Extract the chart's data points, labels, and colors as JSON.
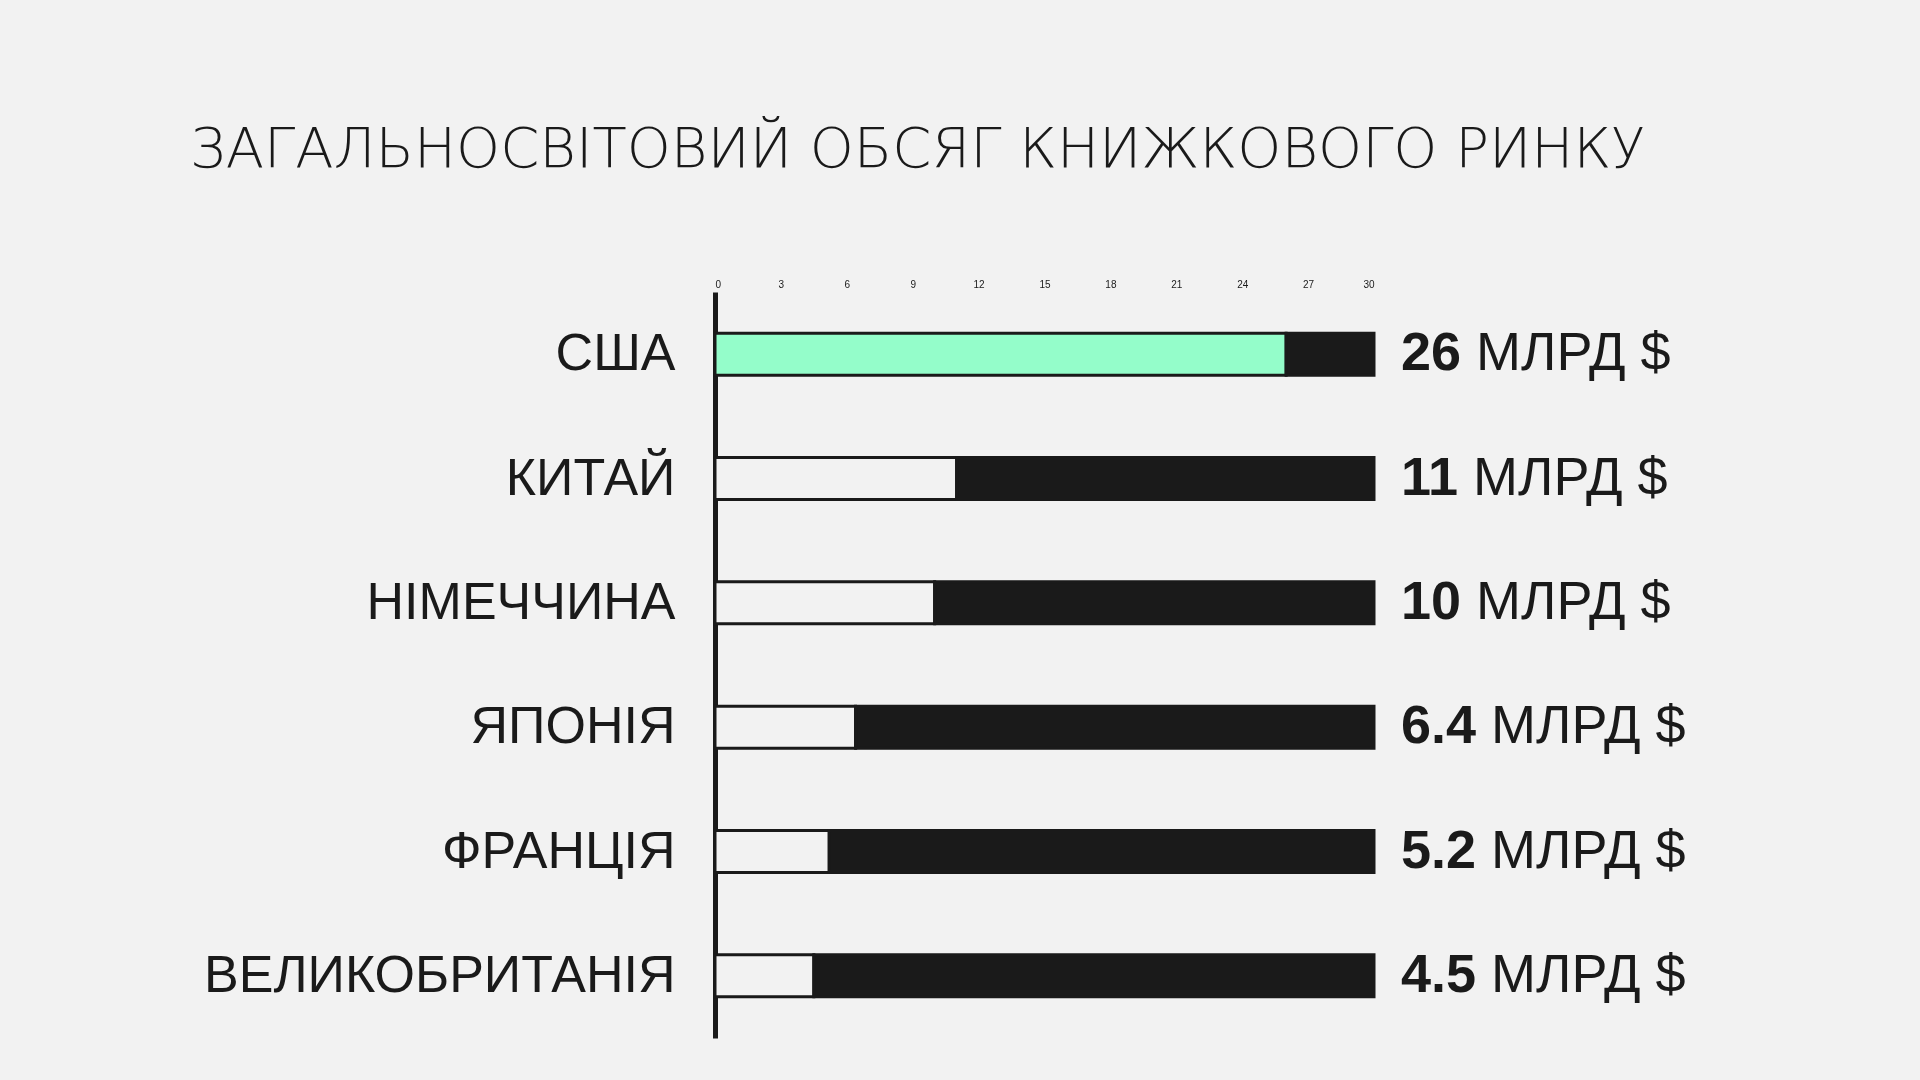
{
  "chart_data": {
    "type": "bar",
    "orientation": "horizontal",
    "stacked": true,
    "title": "ЗАГАЛЬНОСВІТОВИЙ ОБСЯГ КНИЖКОВОГО РИНКУ",
    "categories": [
      "США",
      "КИТАЙ",
      "НІМЕЧЧИНА",
      "ЯПОНІЯ",
      "ФРАНЦІЯ",
      "ВЕЛИКОБРИТАНІЯ"
    ],
    "series": [
      {
        "colors": [
          "#94fdca",
          "#f2f2f2",
          "#f2f2f2",
          "#f2f2f2",
          "#f2f2f2",
          "#f2f2f2"
        ],
        "values": [
          26,
          11,
          10,
          6.4,
          5.2,
          4.5
        ],
        "value_labels": [
          "26 МЛРД $",
          "11 МЛРД $",
          "10 МЛРД $",
          "6.4 МЛРД $",
          "5.2 МЛРД $",
          "4.5 МЛРД $"
        ]
      },
      {
        "color": "#1a1a1a",
        "values": [
          4,
          19,
          20,
          23.6,
          24.8,
          25.5
        ]
      }
    ],
    "xlim": [
      0,
      30
    ],
    "xticks": [
      0,
      3,
      6,
      9,
      12,
      15,
      18,
      21,
      24,
      27,
      30
    ],
    "grid": false,
    "legend": false
  }
}
